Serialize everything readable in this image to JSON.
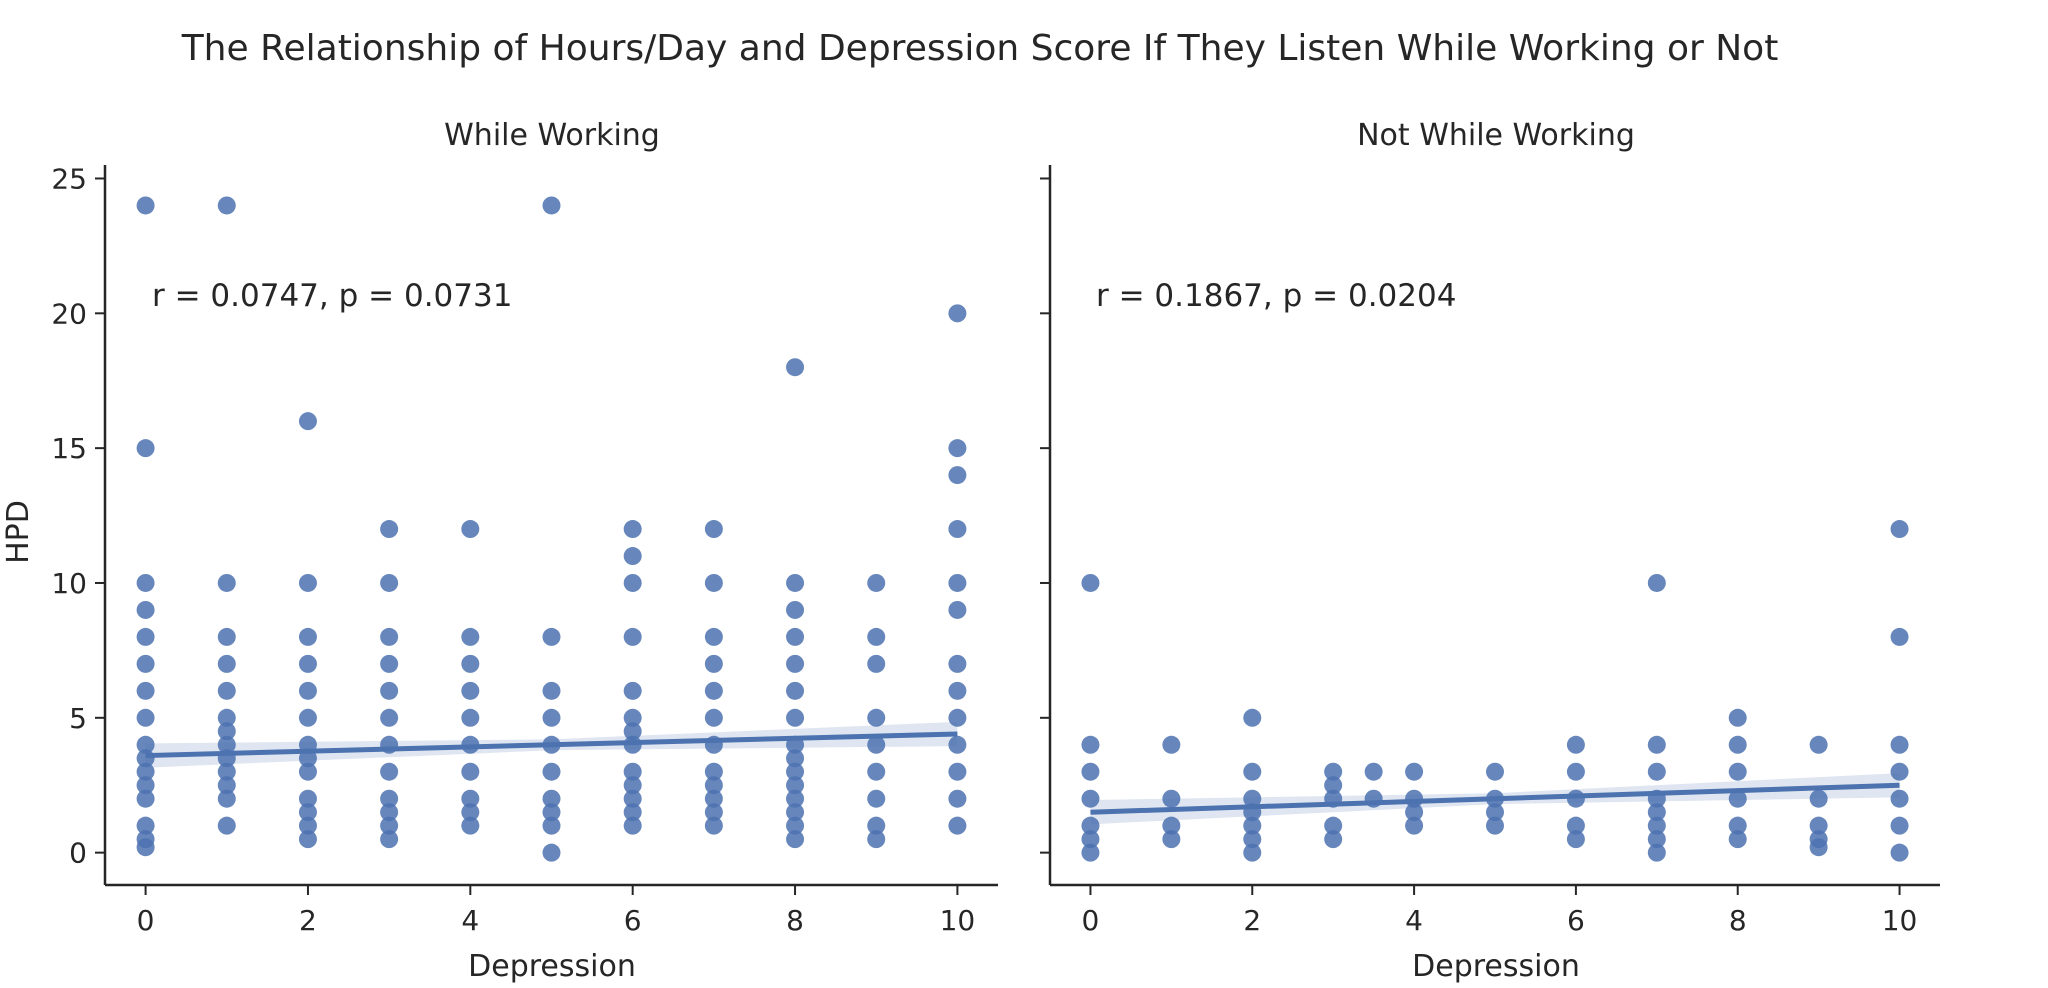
{
  "title": "The Relationship of Hours/Day and Depression Score If They Listen While Working or Not",
  "chart_data": [
    {
      "type": "scatter",
      "title": "While Working",
      "xlabel": "Depression",
      "ylabel": "HPD",
      "xlim": [
        -0.5,
        10.5
      ],
      "ylim": [
        -1.2,
        25.5
      ],
      "xticks": [
        0,
        2,
        4,
        6,
        8,
        10
      ],
      "yticks": [
        0,
        5,
        10,
        15,
        20,
        25
      ],
      "grid": false,
      "annotation": "r = 0.0747, p = 0.0731",
      "color": "#4c72b0",
      "regression": {
        "x0": 0,
        "y0": 3.6,
        "x1": 10,
        "y1": 4.4
      },
      "points": [
        [
          0,
          24
        ],
        [
          0,
          15
        ],
        [
          0,
          10
        ],
        [
          0,
          9
        ],
        [
          0,
          8
        ],
        [
          0,
          7
        ],
        [
          0,
          6
        ],
        [
          0,
          5
        ],
        [
          0,
          4
        ],
        [
          0,
          3.5
        ],
        [
          0,
          3
        ],
        [
          0,
          2.5
        ],
        [
          0,
          2
        ],
        [
          0,
          1
        ],
        [
          0,
          0.5
        ],
        [
          0,
          0.2
        ],
        [
          1,
          24
        ],
        [
          1,
          10
        ],
        [
          1,
          8
        ],
        [
          1,
          7
        ],
        [
          1,
          6
        ],
        [
          1,
          5
        ],
        [
          1,
          4.5
        ],
        [
          1,
          4
        ],
        [
          1,
          3.5
        ],
        [
          1,
          3
        ],
        [
          1,
          2.5
        ],
        [
          1,
          2
        ],
        [
          1,
          1
        ],
        [
          2,
          16
        ],
        [
          2,
          10
        ],
        [
          2,
          8
        ],
        [
          2,
          7
        ],
        [
          2,
          6
        ],
        [
          2,
          5
        ],
        [
          2,
          4
        ],
        [
          2,
          3.5
        ],
        [
          2,
          3
        ],
        [
          2,
          2
        ],
        [
          2,
          1.5
        ],
        [
          2,
          1
        ],
        [
          2,
          0.5
        ],
        [
          3,
          12
        ],
        [
          3,
          10
        ],
        [
          3,
          8
        ],
        [
          3,
          7
        ],
        [
          3,
          6
        ],
        [
          3,
          5
        ],
        [
          3,
          4
        ],
        [
          3,
          3
        ],
        [
          3,
          2
        ],
        [
          3,
          1.5
        ],
        [
          3,
          1
        ],
        [
          3,
          0.5
        ],
        [
          4,
          12
        ],
        [
          4,
          8
        ],
        [
          4,
          7
        ],
        [
          4,
          6
        ],
        [
          4,
          5
        ],
        [
          4,
          4
        ],
        [
          4,
          3
        ],
        [
          4,
          2
        ],
        [
          4,
          1.5
        ],
        [
          4,
          1
        ],
        [
          5,
          24
        ],
        [
          5,
          8
        ],
        [
          5,
          6
        ],
        [
          5,
          5
        ],
        [
          5,
          4
        ],
        [
          5,
          3
        ],
        [
          5,
          2
        ],
        [
          5,
          1.5
        ],
        [
          5,
          1
        ],
        [
          5,
          0
        ],
        [
          6,
          12
        ],
        [
          6,
          11
        ],
        [
          6,
          10
        ],
        [
          6,
          8
        ],
        [
          6,
          6
        ],
        [
          6,
          5
        ],
        [
          6,
          4.5
        ],
        [
          6,
          4
        ],
        [
          6,
          3
        ],
        [
          6,
          2.5
        ],
        [
          6,
          2
        ],
        [
          6,
          1.5
        ],
        [
          6,
          1
        ],
        [
          7,
          12
        ],
        [
          7,
          10
        ],
        [
          7,
          8
        ],
        [
          7,
          7
        ],
        [
          7,
          6
        ],
        [
          7,
          5
        ],
        [
          7,
          4
        ],
        [
          7,
          3
        ],
        [
          7,
          2.5
        ],
        [
          7,
          2
        ],
        [
          7,
          1.5
        ],
        [
          7,
          1
        ],
        [
          8,
          18
        ],
        [
          8,
          10
        ],
        [
          8,
          9
        ],
        [
          8,
          8
        ],
        [
          8,
          7
        ],
        [
          8,
          6
        ],
        [
          8,
          5
        ],
        [
          8,
          4
        ],
        [
          8,
          3.5
        ],
        [
          8,
          3
        ],
        [
          8,
          2.5
        ],
        [
          8,
          2
        ],
        [
          8,
          1.5
        ],
        [
          8,
          1
        ],
        [
          8,
          0.5
        ],
        [
          9,
          10
        ],
        [
          9,
          8
        ],
        [
          9,
          7
        ],
        [
          9,
          5
        ],
        [
          9,
          4
        ],
        [
          9,
          3
        ],
        [
          9,
          2
        ],
        [
          9,
          1
        ],
        [
          9,
          0.5
        ],
        [
          10,
          20
        ],
        [
          10,
          15
        ],
        [
          10,
          14
        ],
        [
          10,
          12
        ],
        [
          10,
          10
        ],
        [
          10,
          9
        ],
        [
          10,
          7
        ],
        [
          10,
          6
        ],
        [
          10,
          5
        ],
        [
          10,
          4
        ],
        [
          10,
          3
        ],
        [
          10,
          2
        ],
        [
          10,
          1
        ]
      ]
    },
    {
      "type": "scatter",
      "title": "Not While Working",
      "xlabel": "Depression",
      "ylabel": "",
      "xlim": [
        -0.5,
        10.5
      ],
      "ylim": [
        -1.2,
        25.5
      ],
      "xticks": [
        0,
        2,
        4,
        6,
        8,
        10
      ],
      "yticks": [
        0,
        5,
        10,
        15,
        20,
        25
      ],
      "grid": false,
      "annotation": "r = 0.1867, p = 0.0204",
      "color": "#4c72b0",
      "regression": {
        "x0": 0,
        "y0": 1.5,
        "x1": 10,
        "y1": 2.5
      },
      "points": [
        [
          0,
          10
        ],
        [
          0,
          4
        ],
        [
          0,
          3
        ],
        [
          0,
          2
        ],
        [
          0,
          1
        ],
        [
          0,
          0.5
        ],
        [
          0,
          0
        ],
        [
          1,
          4
        ],
        [
          1,
          2
        ],
        [
          1,
          1
        ],
        [
          1,
          0.5
        ],
        [
          2,
          5
        ],
        [
          2,
          3
        ],
        [
          2,
          2
        ],
        [
          2,
          1.5
        ],
        [
          2,
          1
        ],
        [
          2,
          0.5
        ],
        [
          2,
          0
        ],
        [
          3,
          3
        ],
        [
          3,
          2.5
        ],
        [
          3,
          2
        ],
        [
          3,
          1
        ],
        [
          3,
          0.5
        ],
        [
          3.5,
          3
        ],
        [
          3.5,
          2
        ],
        [
          4,
          3
        ],
        [
          4,
          2
        ],
        [
          4,
          1.5
        ],
        [
          4,
          1
        ],
        [
          5,
          3
        ],
        [
          5,
          2
        ],
        [
          5,
          1.5
        ],
        [
          5,
          1
        ],
        [
          6,
          4
        ],
        [
          6,
          3
        ],
        [
          6,
          2
        ],
        [
          6,
          1
        ],
        [
          6,
          0.5
        ],
        [
          7,
          10
        ],
        [
          7,
          4
        ],
        [
          7,
          3
        ],
        [
          7,
          2
        ],
        [
          7,
          1.5
        ],
        [
          7,
          1
        ],
        [
          7,
          0.5
        ],
        [
          7,
          0
        ],
        [
          8,
          5
        ],
        [
          8,
          4
        ],
        [
          8,
          3
        ],
        [
          8,
          2
        ],
        [
          8,
          1
        ],
        [
          8,
          0.5
        ],
        [
          9,
          4
        ],
        [
          9,
          2
        ],
        [
          9,
          1
        ],
        [
          9,
          0.5
        ],
        [
          9,
          0.2
        ],
        [
          10,
          12
        ],
        [
          10,
          8
        ],
        [
          10,
          4
        ],
        [
          10,
          3
        ],
        [
          10,
          2
        ],
        [
          10,
          1
        ],
        [
          10,
          0
        ]
      ]
    }
  ]
}
